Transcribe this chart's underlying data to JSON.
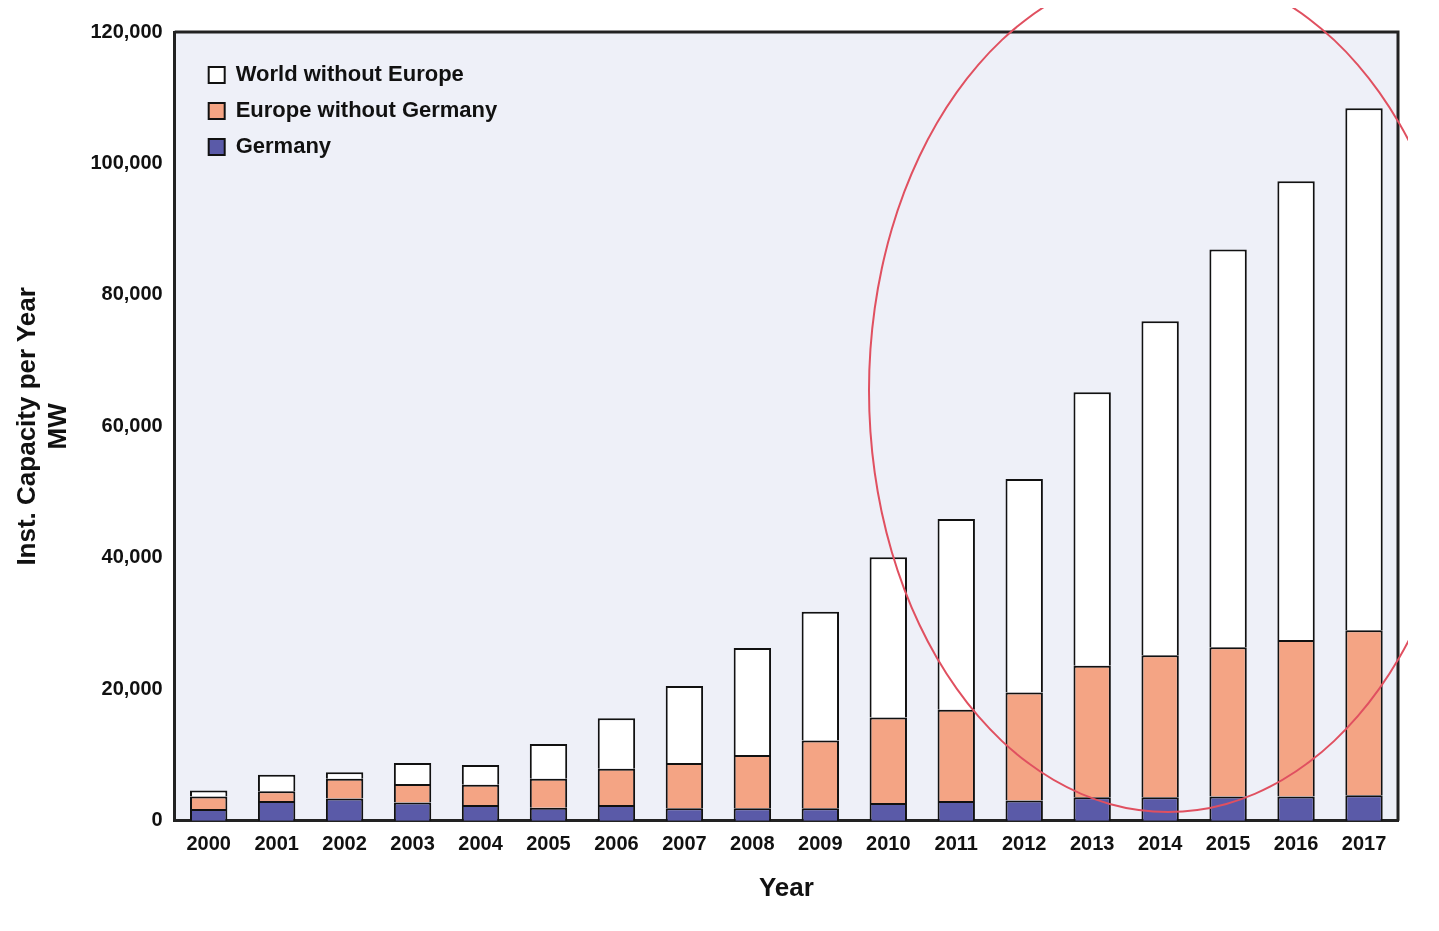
{
  "chart_data": {
    "type": "bar",
    "xlabel": "Year",
    "ylabel": "Inst. Capacity per Year\nMW",
    "categories": [
      "2000",
      "2001",
      "2002",
      "2003",
      "2004",
      "2005",
      "2006",
      "2007",
      "2008",
      "2009",
      "2010",
      "2011",
      "2012",
      "2013",
      "2014",
      "2015",
      "2016",
      "2017"
    ],
    "stacked": true,
    "series": [
      {
        "name": "Germany",
        "color": "#5a5aa8",
        "values": [
          1800,
          3000,
          3400,
          2800,
          2400,
          2000,
          2400,
          1900,
          1900,
          1900,
          2700,
          3000,
          3100,
          3600,
          3600,
          3700,
          3700,
          3900
        ]
      },
      {
        "name": "Europe without Germany",
        "color": "#f4a484",
        "values": [
          1900,
          1500,
          3000,
          2800,
          3100,
          4400,
          5500,
          6900,
          8100,
          10300,
          13000,
          13900,
          16400,
          20000,
          21600,
          22700,
          23800,
          25100
        ]
      },
      {
        "name": "World without Europe",
        "color": "#ffffff",
        "values": [
          900,
          2500,
          1000,
          3200,
          3000,
          5300,
          7700,
          11700,
          16300,
          19600,
          24400,
          29000,
          32500,
          41600,
          50800,
          60500,
          69800,
          79400
        ]
      }
    ],
    "ylim": [
      0,
      120000
    ],
    "yticks": [
      0,
      {
        "value": 20000,
        "label": "20,000"
      },
      {
        "value": 40000,
        "label": "40,000"
      },
      {
        "value": 60000,
        "label": "60,000"
      },
      {
        "value": 80000,
        "label": "80,000"
      },
      {
        "value": 100000,
        "label": "100,000"
      },
      {
        "value": 120000,
        "label": "120,000"
      }
    ],
    "grid": false,
    "legend": "top left"
  }
}
